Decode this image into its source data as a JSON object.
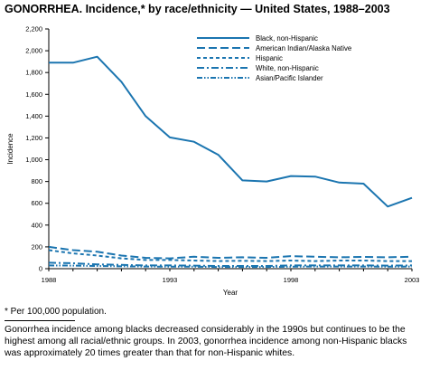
{
  "title": "GONORRHEA. Incidence,* by race/ethnicity — United States, 1988–2003",
  "footnote": "* Per 100,000 population.",
  "caption": "Gonorrhea incidence among blacks decreased considerably in the 1990s but continues to be the highest among all racial/ethnic groups. In 2003, gonorrhea incidence among non-Hispanic blacks was approximately 20 times greater than that for non-Hispanic whites.",
  "colors": {
    "line": "#1b75b0",
    "axis": "#000000",
    "text": "#000000"
  },
  "chart_data": {
    "type": "line",
    "title": "GONORRHEA. Incidence,* by race/ethnicity — United States, 1988–2003",
    "xlabel": "Year",
    "ylabel": "Incidence",
    "xlim": [
      1988,
      2003
    ],
    "ylim": [
      0,
      2200
    ],
    "x_ticks": [
      1988,
      1993,
      1998,
      2003
    ],
    "x_tick_labels": [
      "1988",
      "1993",
      "1998",
      "2003"
    ],
    "y_ticks": [
      0,
      200,
      400,
      600,
      800,
      1000,
      1200,
      1400,
      1600,
      1800,
      2000,
      2200
    ],
    "y_tick_labels": [
      "0",
      "200",
      "400",
      "600",
      "800",
      "1,000",
      "1,200",
      "1,400",
      "1,600",
      "1,800",
      "2,000",
      "2,200"
    ],
    "grid": false,
    "legend_position": "top-right",
    "x": [
      1988,
      1989,
      1990,
      1991,
      1992,
      1993,
      1994,
      1995,
      1996,
      1997,
      1998,
      1999,
      2000,
      2001,
      2002,
      2003
    ],
    "series": [
      {
        "name": "Black, non-Hispanic",
        "dash": "solid",
        "values": [
          1890,
          1890,
          1945,
          1715,
          1400,
          1205,
          1165,
          1045,
          810,
          800,
          850,
          845,
          790,
          780,
          570,
          650
        ]
      },
      {
        "name": "American Indian/Alaska Native",
        "dash": "long-dash",
        "values": [
          200,
          170,
          155,
          120,
          100,
          95,
          110,
          100,
          105,
          100,
          115,
          110,
          105,
          108,
          105,
          110
        ]
      },
      {
        "name": "Hispanic",
        "dash": "short-dash",
        "values": [
          170,
          140,
          120,
          95,
          80,
          80,
          75,
          70,
          72,
          70,
          75,
          70,
          75,
          75,
          70,
          70
        ]
      },
      {
        "name": "White, non-Hispanic",
        "dash": "dash-dot",
        "values": [
          55,
          50,
          40,
          35,
          30,
          30,
          28,
          25,
          25,
          25,
          30,
          30,
          30,
          30,
          28,
          30
        ]
      },
      {
        "name": "Asian/Pacific Islander",
        "dash": "dash-dot-dot",
        "values": [
          30,
          28,
          25,
          22,
          20,
          18,
          18,
          16,
          16,
          16,
          18,
          20,
          20,
          20,
          18,
          20
        ]
      }
    ]
  }
}
